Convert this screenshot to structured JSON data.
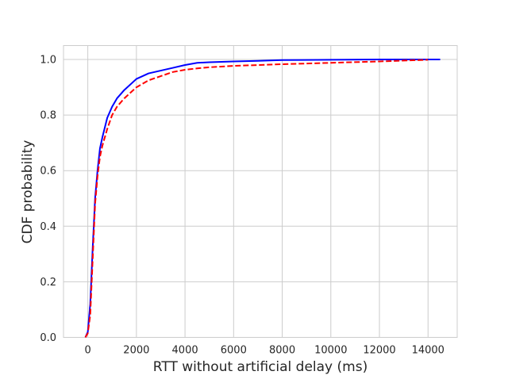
{
  "chart_data": {
    "type": "line",
    "xlabel": "RTT without artificial delay (ms)",
    "ylabel": "CDF probability",
    "xlim": [
      -1000,
      15200
    ],
    "ylim": [
      0,
      1.05
    ],
    "xticks": [
      0,
      2000,
      4000,
      6000,
      8000,
      10000,
      12000,
      14000
    ],
    "yticks": [
      0.0,
      0.2,
      0.4,
      0.6,
      0.8,
      1.0
    ],
    "xtick_labels": [
      "0",
      "2000",
      "4000",
      "6000",
      "8000",
      "10000",
      "12000",
      "14000"
    ],
    "ytick_labels": [
      "0.0",
      "0.2",
      "0.4",
      "0.6",
      "0.8",
      "1.0"
    ],
    "grid": true,
    "series": [
      {
        "color": "#0000ff",
        "style": "solid",
        "x": [
          -100,
          0,
          100,
          200,
          300,
          400,
          500,
          600,
          800,
          1000,
          1200,
          1500,
          2000,
          2500,
          3000,
          3500,
          4000,
          4500,
          5000,
          6000,
          7000,
          8000,
          10000,
          12000,
          14000,
          14500
        ],
        "y": [
          0.0,
          0.02,
          0.12,
          0.32,
          0.5,
          0.6,
          0.68,
          0.72,
          0.79,
          0.83,
          0.86,
          0.89,
          0.93,
          0.95,
          0.96,
          0.97,
          0.98,
          0.988,
          0.99,
          0.993,
          0.995,
          0.998,
          0.999,
          1.0,
          1.0,
          1.0
        ]
      },
      {
        "color": "#ff0000",
        "style": "dashed",
        "x": [
          -100,
          0,
          100,
          200,
          300,
          400,
          500,
          600,
          800,
          1000,
          1200,
          1500,
          2000,
          2500,
          3000,
          3500,
          4000,
          4500,
          5000,
          6000,
          7000,
          8000,
          10000,
          12000,
          13000,
          14000
        ],
        "y": [
          0.0,
          0.015,
          0.08,
          0.28,
          0.48,
          0.58,
          0.65,
          0.69,
          0.75,
          0.8,
          0.83,
          0.86,
          0.9,
          0.925,
          0.94,
          0.955,
          0.963,
          0.968,
          0.972,
          0.977,
          0.98,
          0.983,
          0.988,
          0.993,
          0.996,
          0.999
        ]
      }
    ]
  }
}
